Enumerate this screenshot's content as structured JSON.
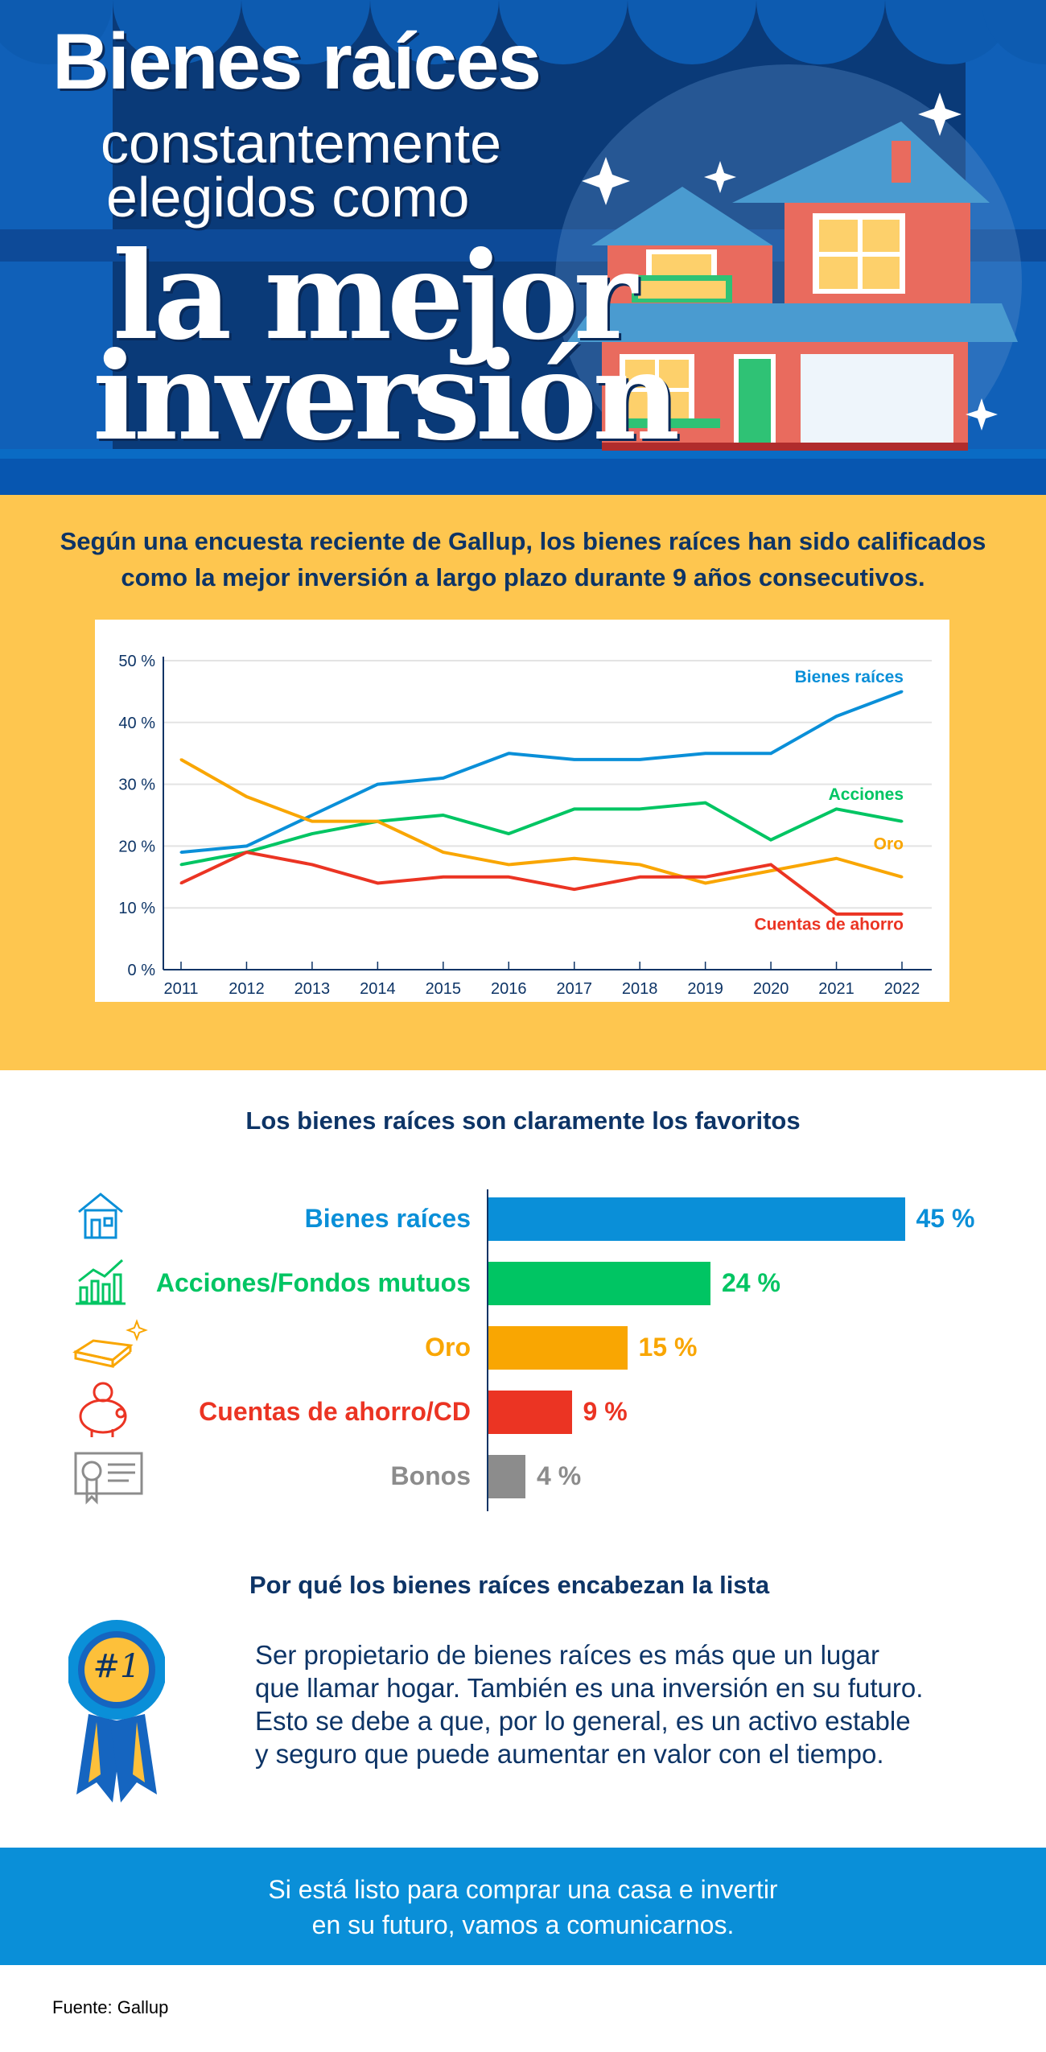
{
  "header": {
    "line1": "Bienes raíces",
    "line2": "constantemente",
    "line3": "elegidos como",
    "line4": "la mejor",
    "line5": "inversión"
  },
  "intro": "Según una encuesta reciente de Gallup, los bienes raíces han sido calificados como la mejor inversión a largo plazo durante 9 años consecutivos.",
  "chart_data": [
    {
      "type": "line",
      "title": "",
      "xlabel": "",
      "ylabel": "",
      "categories": [
        "2011",
        "2012",
        "2013",
        "2014",
        "2015",
        "2016",
        "2017",
        "2018",
        "2019",
        "2020",
        "2021",
        "2022"
      ],
      "yticks": [
        "0 %",
        "10 %",
        "20 %",
        "30 %",
        "40 %",
        "50 %"
      ],
      "ylim": [
        0,
        50
      ],
      "grid": true,
      "legend": "inline-right",
      "series": [
        {
          "name": "Bienes raíces",
          "color": "#0a8fd8",
          "values": [
            19,
            20,
            25,
            30,
            31,
            35,
            34,
            34,
            35,
            35,
            41,
            45
          ]
        },
        {
          "name": "Acciones",
          "color": "#00c563",
          "values": [
            17,
            19,
            22,
            24,
            25,
            22,
            26,
            26,
            27,
            21,
            26,
            24
          ]
        },
        {
          "name": "Oro",
          "color": "#f9a602",
          "values": [
            34,
            28,
            24,
            24,
            19,
            17,
            18,
            17,
            14,
            16,
            18,
            15
          ]
        },
        {
          "name": "Cuentas de ahorro",
          "color": "#eb3423",
          "values": [
            14,
            19,
            17,
            14,
            15,
            15,
            13,
            15,
            15,
            17,
            9,
            9
          ]
        }
      ]
    },
    {
      "type": "bar",
      "title": "Los bienes raíces son claramente los favoritos",
      "orientation": "horizontal",
      "xlim": [
        0,
        45
      ],
      "categories": [
        "Bienes raíces",
        "Acciones/Fondos mutuos",
        "Oro",
        "Cuentas de ahorro/CD",
        "Bonos"
      ],
      "values": [
        45,
        24,
        15,
        9,
        4
      ],
      "labels": [
        "45 %",
        "24 %",
        "15 %",
        "9 %",
        "4 %"
      ],
      "colors": [
        "#0a8fd8",
        "#00c563",
        "#f9a602",
        "#eb3423",
        "#8c8c8c"
      ],
      "icons": [
        "house-icon",
        "growth-chart-icon",
        "gold-bar-icon",
        "piggy-bank-icon",
        "bond-certificate-icon"
      ]
    }
  ],
  "why": {
    "title": "Por qué los bienes raíces encabezan la lista",
    "badge": "#1",
    "lines": [
      "Ser propietario de bienes raíces es más que un lugar",
      "que llamar hogar. También es una inversión en su futuro.",
      "Esto se debe a que, por lo general, es un activo estable",
      "y seguro que puede aumentar en valor con el tiempo."
    ]
  },
  "footer": {
    "line1": "Si está listo para comprar una casa e invertir",
    "line2": "en su futuro, vamos a comunicarnos."
  },
  "source": "Fuente: Gallup"
}
